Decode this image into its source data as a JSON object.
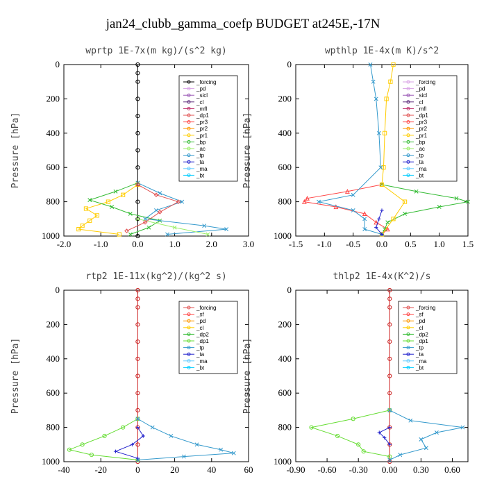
{
  "title": "jan24_clubb_gamma_coefp  BUDGET at245E,-17N",
  "chart_data": [
    {
      "type": "line",
      "title": "wprtp   1E-7x(m kg)/(s^2 kg)",
      "ylabel": "Pressure [hPa]",
      "xlim": [
        -2.0,
        3.0
      ],
      "ylim": [
        1000,
        0
      ],
      "xticks": [
        "-2.0",
        "-1.0",
        "0.0",
        "1.0",
        "2.0",
        "3.0"
      ],
      "xtick_values": [
        -2,
        -1,
        0,
        1,
        2,
        3
      ],
      "yticks": [
        "0",
        "200",
        "400",
        "600",
        "800",
        "1000"
      ],
      "ytick_values": [
        0,
        200,
        400,
        600,
        800,
        1000
      ],
      "legend": [
        {
          "name": "_forcing",
          "color": "#000000"
        },
        {
          "name": "_pd",
          "color": "#d9a3e6"
        },
        {
          "name": "_sicl",
          "color": "#9b59b6"
        },
        {
          "name": "_cl",
          "color": "#5c2a7a"
        },
        {
          "name": "_mfl",
          "color": "#c0306a"
        },
        {
          "name": "_dp1",
          "color": "#e05050"
        },
        {
          "name": "_pr3",
          "color": "#ff4444"
        },
        {
          "name": "_pr2",
          "color": "#ff9900"
        },
        {
          "name": "_pr1",
          "color": "#ffcc00"
        },
        {
          "name": "_bp",
          "color": "#33bb33"
        },
        {
          "name": "_ac",
          "color": "#99ee66"
        },
        {
          "name": "_tp",
          "color": "#3399cc"
        },
        {
          "name": "_ta",
          "color": "#2222cc"
        },
        {
          "name": "_ma",
          "color": "#66ccff"
        },
        {
          "name": "_bt",
          "color": "#00ccff"
        }
      ],
      "series": [
        {
          "name": "_forcing",
          "color": "#000000",
          "marker": "circle",
          "p": [
            0,
            50,
            100,
            200,
            300,
            400,
            500,
            600,
            700,
            800,
            900,
            1000
          ],
          "x": [
            0,
            0,
            0,
            0,
            0,
            0,
            0,
            0,
            0,
            0,
            0,
            0
          ]
        },
        {
          "name": "_pr1",
          "color": "#ffcc00",
          "marker": "square",
          "p": [
            700,
            760,
            800,
            840,
            880,
            910,
            940,
            960,
            990
          ],
          "x": [
            0,
            -0.4,
            -0.8,
            -1.4,
            -1.1,
            -1.3,
            -1.5,
            -1.6,
            -0.5
          ]
        },
        {
          "name": "_bp",
          "color": "#33bb33",
          "marker": "x",
          "p": [
            690,
            740,
            790,
            830,
            870,
            910,
            950,
            990
          ],
          "x": [
            0,
            -0.6,
            -1.3,
            -0.7,
            -0.2,
            0.6,
            0.3,
            -0.2
          ]
        },
        {
          "name": "_tp",
          "color": "#3399cc",
          "marker": "x",
          "p": [
            690,
            750,
            800,
            850,
            900,
            940,
            960,
            990
          ],
          "x": [
            0,
            0.6,
            1.2,
            0.5,
            0.2,
            1.8,
            2.4,
            0.8
          ]
        },
        {
          "name": "_ac",
          "color": "#99ee66",
          "marker": "x",
          "p": [
            900,
            950,
            990
          ],
          "x": [
            0,
            1.0,
            1.9
          ]
        },
        {
          "name": "_dp1",
          "color": "#e05050",
          "marker": "diamond",
          "p": [
            700,
            760,
            800,
            860,
            920,
            970
          ],
          "x": [
            0,
            0.5,
            1.1,
            0.6,
            0.2,
            -0.3
          ]
        }
      ]
    },
    {
      "type": "line",
      "title": "wpthlp   1E-4x(m K)/s^2",
      "ylabel": "Pressure [hPa]",
      "xlim": [
        -1.5,
        1.5
      ],
      "ylim": [
        1000,
        0
      ],
      "xticks": [
        "-1.5",
        "-1.0",
        "-0.5",
        "0.0",
        "0.5",
        "1.0",
        "1.5"
      ],
      "xtick_values": [
        -1.5,
        -1,
        -0.5,
        0,
        0.5,
        1,
        1.5
      ],
      "yticks": [
        "0",
        "200",
        "400",
        "600",
        "800",
        "1000"
      ],
      "ytick_values": [
        0,
        200,
        400,
        600,
        800,
        1000
      ],
      "legend": [
        {
          "name": "_forcing",
          "color": "#d9a3e6"
        },
        {
          "name": "_pd",
          "color": "#d9a3e6"
        },
        {
          "name": "_sicl",
          "color": "#9b59b6"
        },
        {
          "name": "_cl",
          "color": "#5c2a7a"
        },
        {
          "name": "_mfl",
          "color": "#c0306a"
        },
        {
          "name": "_dp1",
          "color": "#e05050"
        },
        {
          "name": "_pr3",
          "color": "#ff4444"
        },
        {
          "name": "_pr2",
          "color": "#ff9900"
        },
        {
          "name": "_pr1",
          "color": "#ffcc00"
        },
        {
          "name": "_bp",
          "color": "#33bb33"
        },
        {
          "name": "_ac",
          "color": "#99ee66"
        },
        {
          "name": "_tp",
          "color": "#3399cc"
        },
        {
          "name": "_ta",
          "color": "#2222cc"
        },
        {
          "name": "_ma",
          "color": "#66ccff"
        },
        {
          "name": "_bt",
          "color": "#00ccff"
        }
      ],
      "series": [
        {
          "name": "_pr3",
          "color": "#ff4444",
          "marker": "triangle",
          "p": [
            700,
            740,
            780,
            800,
            830,
            870,
            920,
            960,
            990
          ],
          "x": [
            0,
            -0.6,
            -1.3,
            -1.35,
            -0.8,
            -0.3,
            -0.1,
            0.1,
            0
          ]
        },
        {
          "name": "_bp",
          "color": "#33bb33",
          "marker": "x",
          "p": [
            700,
            740,
            780,
            800,
            830,
            870,
            920,
            960,
            990
          ],
          "x": [
            0,
            0.6,
            1.3,
            1.5,
            1.0,
            0.4,
            0.1,
            0.05,
            0
          ]
        },
        {
          "name": "_pr1",
          "color": "#ffcc00",
          "marker": "square",
          "p": [
            0,
            100,
            200,
            400,
            600,
            700,
            800,
            900,
            990
          ],
          "x": [
            0.2,
            0.15,
            0.08,
            0.05,
            0.03,
            0,
            0.4,
            0.2,
            0
          ]
        },
        {
          "name": "_tp",
          "color": "#3399cc",
          "marker": "x",
          "p": [
            0,
            100,
            200,
            400,
            600,
            760,
            800,
            850,
            900,
            960,
            990
          ],
          "x": [
            -0.2,
            -0.15,
            -0.1,
            -0.05,
            -0.02,
            -0.5,
            -1.1,
            -0.5,
            -0.3,
            -0.3,
            0
          ]
        },
        {
          "name": "_ta",
          "color": "#2222cc",
          "marker": "plus",
          "p": [
            850,
            900,
            950,
            990
          ],
          "x": [
            0,
            -0.05,
            -0.1,
            0
          ]
        }
      ]
    },
    {
      "type": "line",
      "title": "rtp2   1E-11x(kg^2)/(kg^2 s)",
      "ylabel": "Pressure [hPa]",
      "xlim": [
        -40,
        60
      ],
      "ylim": [
        1000,
        0
      ],
      "xticks": [
        "-40",
        "-20",
        "0",
        "20",
        "40",
        "60"
      ],
      "xtick_values": [
        -40,
        -20,
        0,
        20,
        40,
        60
      ],
      "yticks": [
        "0",
        "200",
        "400",
        "600",
        "800",
        "1000"
      ],
      "ytick_values": [
        0,
        200,
        400,
        600,
        800,
        1000
      ],
      "legend": [
        {
          "name": "_forcing",
          "color": "#e05050"
        },
        {
          "name": "_sf",
          "color": "#ff4444"
        },
        {
          "name": "_pd",
          "color": "#ff9900"
        },
        {
          "name": "_cl",
          "color": "#ffcc00"
        },
        {
          "name": "_dp2",
          "color": "#33bb33"
        },
        {
          "name": "_dp1",
          "color": "#66dd33"
        },
        {
          "name": "_tp",
          "color": "#3399cc"
        },
        {
          "name": "_ta",
          "color": "#2222cc"
        },
        {
          "name": "_ma",
          "color": "#66ccff"
        },
        {
          "name": "_bt",
          "color": "#00ccff"
        }
      ],
      "series": [
        {
          "name": "_forcing",
          "color": "#cc2222",
          "marker": "circle",
          "p": [
            0,
            50,
            100,
            200,
            300,
            400,
            500,
            600,
            700,
            800,
            900,
            1000
          ],
          "x": [
            0,
            0,
            0,
            0,
            0,
            0,
            0,
            0,
            0,
            0,
            0,
            0
          ]
        },
        {
          "name": "_dp1",
          "color": "#66dd33",
          "marker": "circle",
          "p": [
            750,
            800,
            850,
            900,
            930,
            960,
            990
          ],
          "x": [
            0,
            -8,
            -18,
            -30,
            -37,
            -25,
            0
          ]
        },
        {
          "name": "_tp",
          "color": "#3399cc",
          "marker": "x",
          "p": [
            750,
            800,
            850,
            900,
            930,
            950,
            970,
            990
          ],
          "x": [
            0,
            8,
            18,
            32,
            45,
            52,
            25,
            0
          ]
        },
        {
          "name": "_ta",
          "color": "#2222cc",
          "marker": "plus",
          "p": [
            800,
            850,
            900,
            940,
            980
          ],
          "x": [
            0,
            3,
            -3,
            -12,
            0
          ]
        }
      ]
    },
    {
      "type": "line",
      "title": "thlp2   1E-4x(K^2)/s",
      "ylabel": "Pressure [hPa]",
      "xlim": [
        -0.9,
        0.75
      ],
      "ylim": [
        1000,
        0
      ],
      "xticks": [
        "-0.90",
        "-0.60",
        "-0.30",
        "0.00",
        "0.30",
        "0.60"
      ],
      "xtick_values": [
        -0.9,
        -0.6,
        -0.3,
        0,
        0.3,
        0.6
      ],
      "yticks": [
        "0",
        "200",
        "400",
        "600",
        "800",
        "1000"
      ],
      "ytick_values": [
        0,
        200,
        400,
        600,
        800,
        1000
      ],
      "legend": [
        {
          "name": "_forcing",
          "color": "#e05050"
        },
        {
          "name": "_sf",
          "color": "#ff4444"
        },
        {
          "name": "_pd",
          "color": "#ff9900"
        },
        {
          "name": "_cl",
          "color": "#ffcc00"
        },
        {
          "name": "_dp2",
          "color": "#33bb33"
        },
        {
          "name": "_dp1",
          "color": "#66dd33"
        },
        {
          "name": "_tp",
          "color": "#3399cc"
        },
        {
          "name": "_ta",
          "color": "#2222cc"
        },
        {
          "name": "_ma",
          "color": "#66ccff"
        },
        {
          "name": "_bt",
          "color": "#00ccff"
        }
      ],
      "series": [
        {
          "name": "_forcing",
          "color": "#cc2222",
          "marker": "circle",
          "p": [
            0,
            50,
            100,
            200,
            300,
            400,
            500,
            600,
            700,
            800,
            900,
            1000
          ],
          "x": [
            0,
            0,
            0,
            0,
            0,
            0,
            0,
            0,
            0,
            0,
            0,
            0
          ]
        },
        {
          "name": "_dp1",
          "color": "#66dd33",
          "marker": "circle",
          "p": [
            700,
            750,
            800,
            850,
            900,
            940,
            970
          ],
          "x": [
            0,
            -0.35,
            -0.75,
            -0.5,
            -0.3,
            -0.25,
            0
          ]
        },
        {
          "name": "_tp",
          "color": "#3399cc",
          "marker": "x",
          "p": [
            700,
            760,
            800,
            830,
            870,
            920,
            960,
            990
          ],
          "x": [
            0,
            0.2,
            0.7,
            0.45,
            0.3,
            0.35,
            0.1,
            0
          ]
        },
        {
          "name": "_ta",
          "color": "#2222cc",
          "marker": "plus",
          "p": [
            800,
            830,
            860,
            900
          ],
          "x": [
            0,
            -0.1,
            -0.05,
            0
          ]
        }
      ]
    }
  ]
}
